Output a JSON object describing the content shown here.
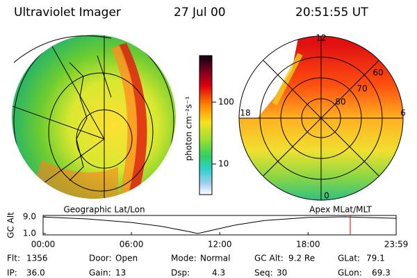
{
  "header": {
    "title": "Ultraviolet Imager",
    "date": "27 Jul 00",
    "time": "20:51:55 UT"
  },
  "colorbar": {
    "label": "photon cm⁻²s⁻¹",
    "scale": "log",
    "lim": [
      3.2,
      566
    ],
    "ticks": [
      10,
      100
    ]
  },
  "images": [
    {
      "caption": "Geographic Lat/Lon"
    },
    {
      "caption": "Apex MLat/MLT",
      "mlt_labels": [
        "12",
        "18",
        "6",
        "0"
      ],
      "mlat_labels": [
        "60",
        "70",
        "80"
      ]
    }
  ],
  "altitude_plot": {
    "type": "line",
    "ylabel": "GC Alt",
    "xlim": [
      0,
      23.983
    ],
    "xticks": [
      {
        "value": 0,
        "label": "00:00"
      },
      {
        "value": 6,
        "label": "06:00"
      },
      {
        "value": 12,
        "label": "12:00"
      },
      {
        "value": 18,
        "label": "18:00"
      },
      {
        "value": 23.983,
        "label": "23:59"
      }
    ],
    "ylim": [
      1,
      9
    ],
    "yticks": [
      {
        "value": 9,
        "label": "9.0"
      },
      {
        "value": 1,
        "label": "1.0"
      }
    ],
    "x": [
      0,
      3,
      6,
      8,
      10,
      10.5,
      11,
      13,
      15,
      18,
      20.5,
      23.983
    ],
    "values": [
      8.9,
      8.0,
      6.3,
      4.5,
      1.8,
      1.0,
      1.8,
      5.0,
      7.2,
      8.7,
      9.0,
      8.3
    ],
    "color": "#000000",
    "marker_x": 20.865,
    "marker_color": "#cc0000"
  },
  "status": [
    [
      {
        "label": "Flt:",
        "value": "1356"
      },
      {
        "label": "Door:",
        "value": "Open"
      },
      {
        "label": "Mode:",
        "value": "Normal"
      },
      {
        "label": "GC Alt:",
        "value": "9.2 Re"
      },
      {
        "label": "GLat:",
        "value": "79.1"
      }
    ],
    [
      {
        "label": "IP:",
        "value": "36.0"
      },
      {
        "label": "Gain:",
        "value": "13"
      },
      {
        "label": "Dsp:",
        "value": "4.3"
      },
      {
        "label": "Seq:",
        "value": "30"
      },
      {
        "label": "GLon:",
        "value": "69.3"
      }
    ]
  ]
}
